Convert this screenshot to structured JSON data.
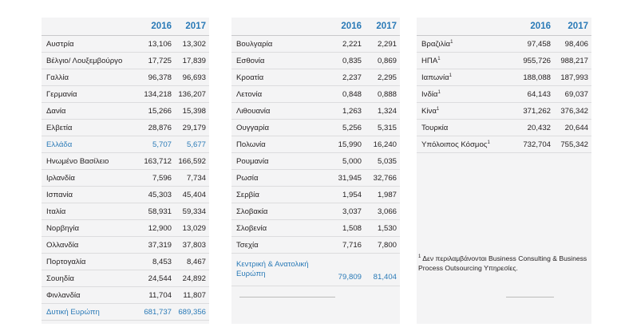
{
  "years": [
    "2016",
    "2017"
  ],
  "table1": [
    {
      "name": "Αυστρία",
      "v2016": "13,106",
      "v2017": "13,302"
    },
    {
      "name": "Βέλγιο/ Λουξεμβούργο",
      "v2016": "17,725",
      "v2017": "17,839"
    },
    {
      "name": "Γαλλία",
      "v2016": "96,378",
      "v2017": "96,693"
    },
    {
      "name": "Γερμανία",
      "v2016": "134,218",
      "v2017": "136,207"
    },
    {
      "name": "Δανία",
      "v2016": "15,266",
      "v2017": "15,398"
    },
    {
      "name": "Ελβετία",
      "v2016": "28,876",
      "v2017": "29,179"
    },
    {
      "name": "Ελλάδα",
      "v2016": "5,707",
      "v2017": "5,677",
      "highlight": true
    },
    {
      "name": "Ηνωμένο Βασίλειο",
      "v2016": "163,712",
      "v2017": "166,592"
    },
    {
      "name": "Ιρλανδία",
      "v2016": "7,596",
      "v2017": "7,734"
    },
    {
      "name": "Ισπανία",
      "v2016": "45,303",
      "v2017": "45,404"
    },
    {
      "name": "Ιταλία",
      "v2016": "58,931",
      "v2017": "59,334"
    },
    {
      "name": "Νορβηγία",
      "v2016": "12,900",
      "v2017": "13,029"
    },
    {
      "name": "Ολλανδία",
      "v2016": "37,319",
      "v2017": "37,803"
    },
    {
      "name": "Πορτογαλία",
      "v2016": "8,453",
      "v2017": "8,467"
    },
    {
      "name": "Σουηδία",
      "v2016": "24,544",
      "v2017": "24,892"
    },
    {
      "name": "Φινλανδία",
      "v2016": "11,704",
      "v2017": "11,807"
    },
    {
      "name": "Δυτική Ευρώπη",
      "v2016": "681,737",
      "v2017": "689,356",
      "highlight": true
    }
  ],
  "table2": [
    {
      "name": "Βουλγαρία",
      "v2016": "2,221",
      "v2017": "2,291"
    },
    {
      "name": "Εσθονία",
      "v2016": "0,835",
      "v2017": "0,869"
    },
    {
      "name": "Κροατία",
      "v2016": "2,237",
      "v2017": "2,295"
    },
    {
      "name": "Λετονία",
      "v2016": "0,848",
      "v2017": "0,888"
    },
    {
      "name": "Λιθουανία",
      "v2016": "1,263",
      "v2017": "1,324"
    },
    {
      "name": "Ουγγαρία",
      "v2016": "5,256",
      "v2017": "5,315"
    },
    {
      "name": "Πολωνία",
      "v2016": "15,990",
      "v2017": "16,240"
    },
    {
      "name": "Ρουμανία",
      "v2016": "5,000",
      "v2017": "5,035"
    },
    {
      "name": "Ρωσία",
      "v2016": "31,945",
      "v2017": "32,766"
    },
    {
      "name": "Σερβία",
      "v2016": "1,954",
      "v2017": "1,987"
    },
    {
      "name": "Σλοβακία",
      "v2016": "3,037",
      "v2017": "3,066"
    },
    {
      "name": "Σλοβενία",
      "v2016": "1,508",
      "v2017": "1,530"
    },
    {
      "name": "Τσεχία",
      "v2016": "7,716",
      "v2017": "7,800"
    },
    {
      "name": "Κεντρική & Ανατολική Ευρώπη",
      "v2016": "79,809",
      "v2017": "81,404",
      "highlight": true,
      "tall": true
    }
  ],
  "table3": [
    {
      "name": "Βραζιλία",
      "sup": "1",
      "v2016": "97,458",
      "v2017": "98,406"
    },
    {
      "name": "ΗΠΑ",
      "sup": "1",
      "v2016": "955,726",
      "v2017": "988,217"
    },
    {
      "name": "Ιαπωνία",
      "sup": "1",
      "v2016": "188,088",
      "v2017": "187,993"
    },
    {
      "name": "Ινδία",
      "sup": "1",
      "v2016": "64,143",
      "v2017": "69,037"
    },
    {
      "name": "Κίνα",
      "sup": "1",
      "v2016": "371,262",
      "v2017": "376,342"
    },
    {
      "name": "Τουρκία",
      "v2016": "20,432",
      "v2017": "20,644"
    },
    {
      "name": "Υπόλοιπος Κόσμος",
      "sup": "1",
      "v2016": "732,704",
      "v2017": "755,342"
    }
  ],
  "footnote": {
    "sup": "1",
    "text": "Δεν περιλαμβάνονται Business Consulting & Business Process Outsourcing Υπηρεσίες."
  },
  "colors": {
    "accent": "#2a7ab7",
    "panel": "#f4f4f5",
    "text": "#231f20"
  }
}
